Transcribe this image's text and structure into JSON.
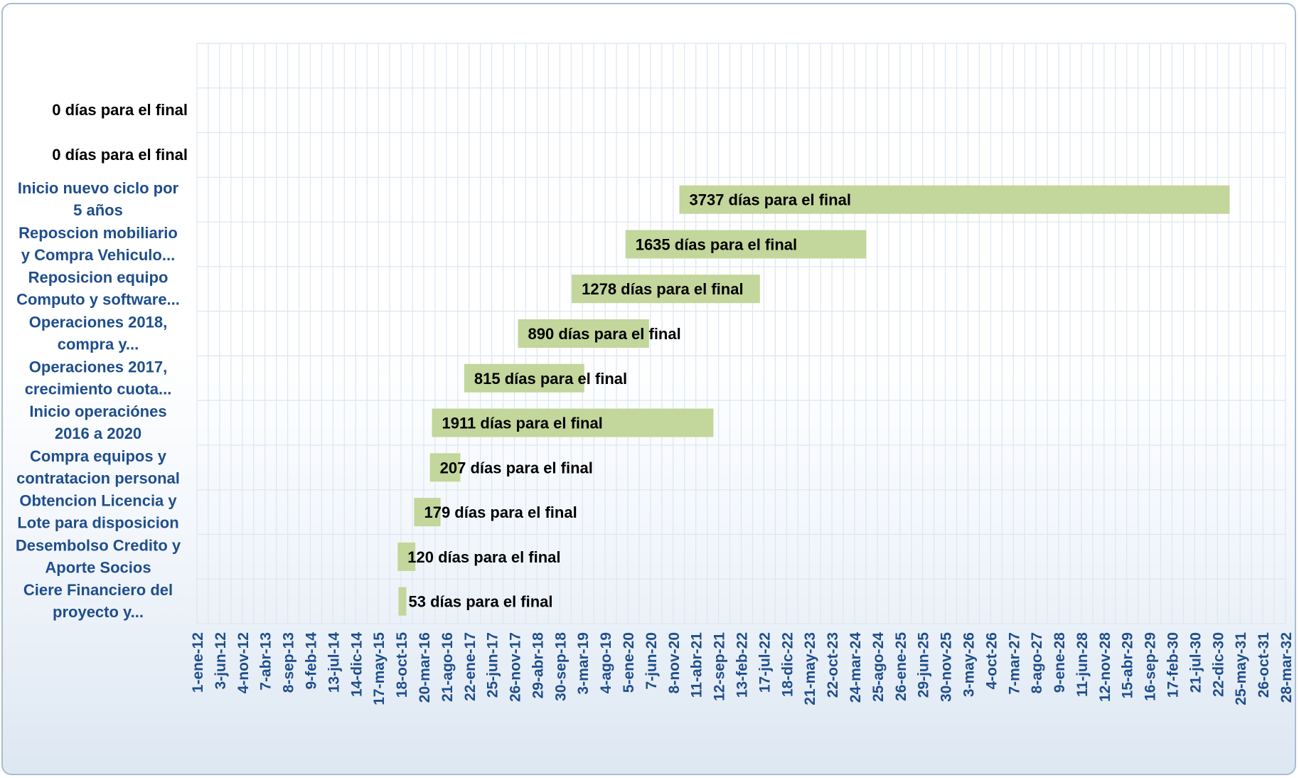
{
  "chart_data": {
    "type": "bar",
    "orientation": "horizontal",
    "subtype": "gantt",
    "title": "",
    "xlabel": "",
    "ylabel": "",
    "x_axis_type": "date",
    "xlim": [
      "2012-01-01",
      "2032-03-28"
    ],
    "grid": true,
    "legend": "none",
    "bar_color": "#c3d69b",
    "x_tick_labels": [
      "1-ene-12",
      "3-jun-12",
      "4-nov-12",
      "7-abr-13",
      "8-sep-13",
      "9-feb-14",
      "13-jul-14",
      "14-dic-14",
      "17-may-15",
      "18-oct-15",
      "20-mar-16",
      "21-ago-16",
      "22-ene-17",
      "25-jun-17",
      "26-nov-17",
      "29-abr-18",
      "30-sep-18",
      "3-mar-19",
      "4-ago-19",
      "5-ene-20",
      "7-jun-20",
      "8-nov-20",
      "11-abr-21",
      "12-sep-21",
      "13-feb-22",
      "17-jul-22",
      "18-dic-22",
      "21-may-23",
      "22-oct-23",
      "24-mar-24",
      "25-ago-24",
      "26-ene-25",
      "29-jun-25",
      "30-nov-25",
      "3-may-26",
      "4-oct-26",
      "7-mar-27",
      "8-ago-27",
      "9-ene-28",
      "11-jun-28",
      "12-nov-28",
      "15-abr-29",
      "16-sep-29",
      "17-feb-30",
      "21-jul-30",
      "22-dic-30",
      "25-may-31",
      "26-oct-31",
      "28-mar-32"
    ],
    "categories": [
      "",
      "",
      "",
      "Inicio nuevo ciclo por 5 años",
      "Reposcion mobiliario y Compra Vehiculo...",
      "Reposicion equipo Computo y software...",
      "Operaciones 2018, compra y...",
      "Operaciones 2017, crecimiento cuota...",
      "Inicio operaciónes 2016 a 2020",
      "Compra equipos y contratacion personal",
      "Obtencion Licencia y Lote para disposicion",
      "Desembolso Credito y Aporte Socios",
      "Ciere Financiero del proyecto y..."
    ],
    "category_label_lines": [
      [],
      [
        "0 días para el final"
      ],
      [
        "0 días para el final"
      ],
      [
        "Inicio nuevo ciclo por",
        "5 años"
      ],
      [
        "Reposcion mobiliario",
        "y Compra Vehiculo..."
      ],
      [
        "Reposicion equipo",
        "Computo y software..."
      ],
      [
        "Operaciones 2018,",
        "compra y..."
      ],
      [
        "Operaciones 2017,",
        "crecimiento cuota..."
      ],
      [
        "Inicio operaciónes",
        "2016 a 2020"
      ],
      [
        "Compra equipos y",
        "contratacion personal"
      ],
      [
        "Obtencion Licencia y",
        "Lote para disposicion"
      ],
      [
        "Desembolso Credito y",
        "Aporte Socios"
      ],
      [
        "Ciere Financiero del",
        "proyecto y..."
      ]
    ],
    "series": [
      {
        "bars": [
          {
            "category_index": 3,
            "start": "2020-12-20",
            "days": 3737,
            "label": "3737 días para el final"
          },
          {
            "category_index": 4,
            "start": "2019-12-20",
            "days": 1635,
            "label": "1635 días para el final"
          },
          {
            "category_index": 5,
            "start": "2018-12-20",
            "days": 1278,
            "label": "1278 días para el final"
          },
          {
            "category_index": 6,
            "start": "2017-12-20",
            "days": 890,
            "label": "890 días para el final"
          },
          {
            "category_index": 7,
            "start": "2016-12-20",
            "days": 815,
            "label": "815 días para el final"
          },
          {
            "category_index": 8,
            "start": "2016-05-15",
            "days": 1911,
            "label": "1911 días para el final"
          },
          {
            "category_index": 9,
            "start": "2016-05-01",
            "days": 207,
            "label": "207 días para el final"
          },
          {
            "category_index": 10,
            "start": "2016-01-15",
            "days": 179,
            "label": "179 días para el final"
          },
          {
            "category_index": 11,
            "start": "2015-09-25",
            "days": 120,
            "label": "120 días para el final"
          },
          {
            "category_index": 12,
            "start": "2015-10-01",
            "days": 53,
            "label": "53 días para el final"
          }
        ]
      }
    ]
  }
}
